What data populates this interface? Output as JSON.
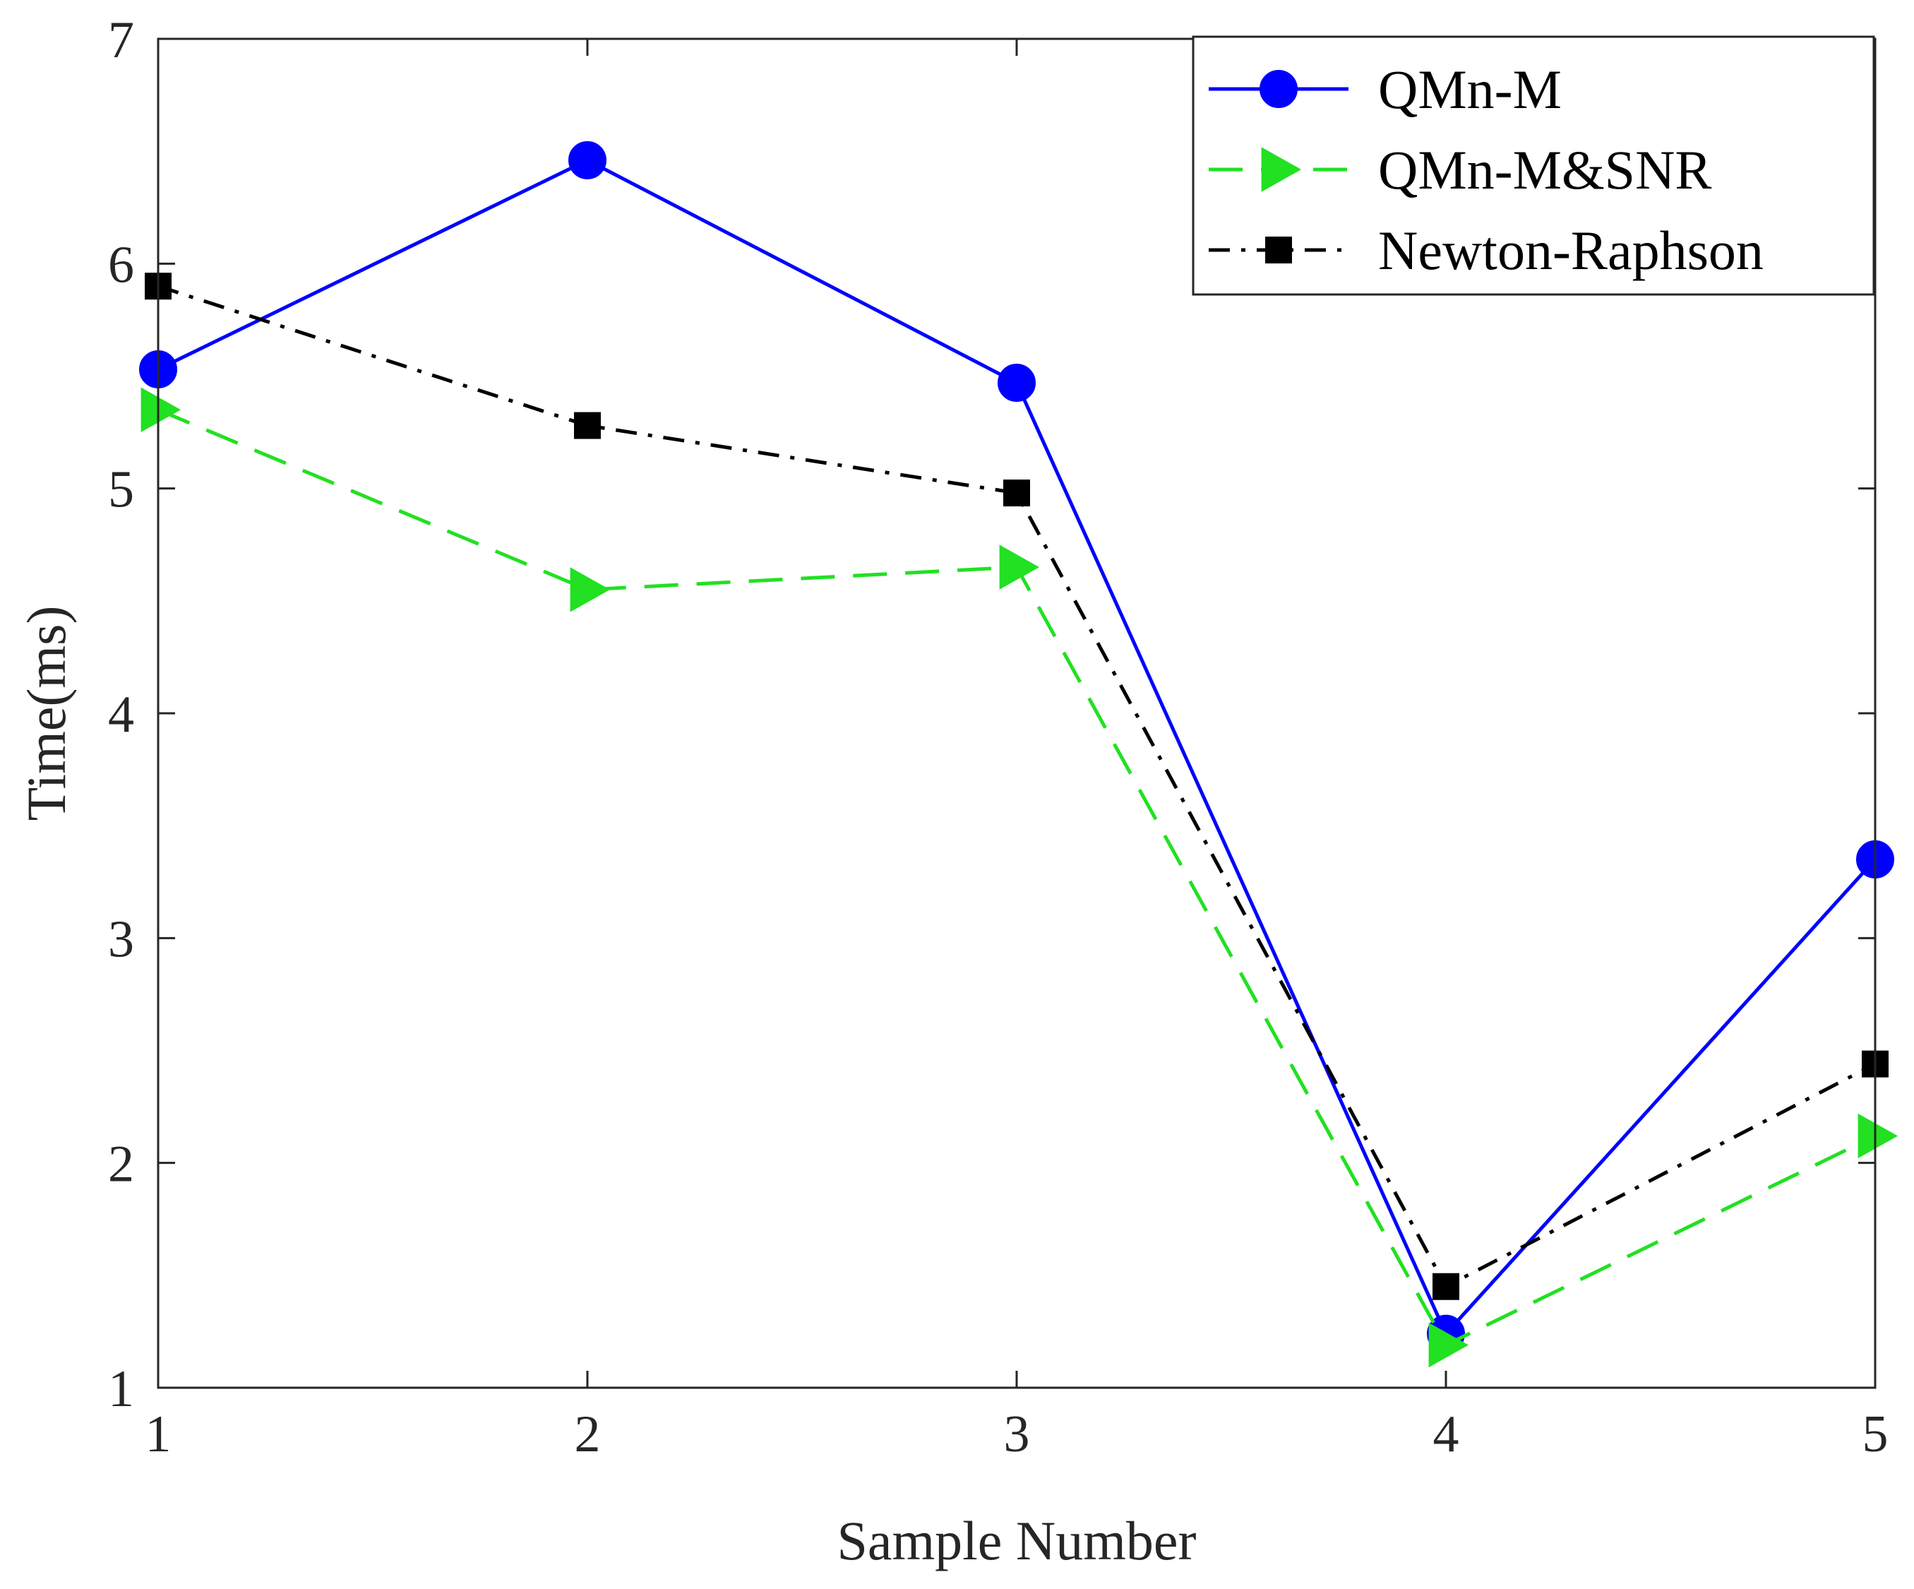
{
  "chart_data": {
    "type": "line",
    "title": "",
    "xlabel": "Sample Number",
    "ylabel": "Time(ms)",
    "x": [
      1,
      2,
      3,
      4,
      5
    ],
    "xlim": [
      1,
      5
    ],
    "ylim": [
      1,
      7
    ],
    "xticks": [
      "1",
      "2",
      "3",
      "4",
      "5"
    ],
    "yticks": [
      "1",
      "2",
      "3",
      "4",
      "5",
      "6",
      "7"
    ],
    "grid": false,
    "legend_position": "top-right",
    "series": [
      {
        "name": "QMn-M",
        "values": [
          5.53,
          6.46,
          5.47,
          1.24,
          3.35
        ],
        "color": "#0000ff",
        "line_style": "solid",
        "marker": "circle",
        "marker_color": "#0000ff"
      },
      {
        "name": "QMn-M&SNR",
        "values": [
          5.35,
          4.55,
          4.65,
          1.19,
          2.12
        ],
        "color": "#22e022",
        "line_style": "dashed",
        "marker": "triangle-right",
        "marker_color": "#22e022"
      },
      {
        "name": "Newton-Raphson",
        "values": [
          5.9,
          5.28,
          4.98,
          1.45,
          2.44
        ],
        "color": "#000000",
        "line_style": "dash-dot",
        "marker": "square",
        "marker_color": "#000000"
      }
    ]
  }
}
